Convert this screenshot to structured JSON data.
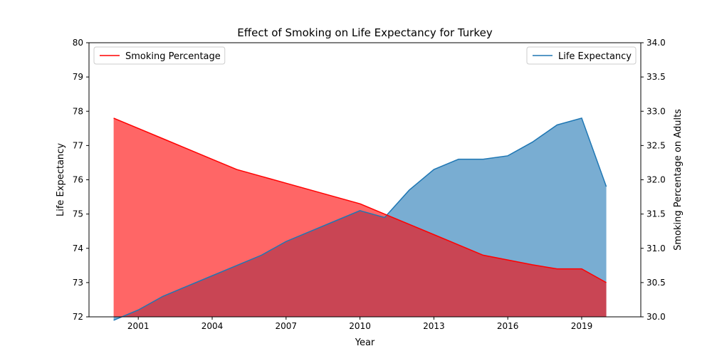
{
  "chart_data": {
    "type": "area",
    "title": "Effect of Smoking on Life Expectancy for Turkey",
    "xlabel": "Year",
    "ylabel_left": "Life Expectancy",
    "ylabel_right": "Smoking Percentage on Adults",
    "x": [
      2000,
      2001,
      2002,
      2003,
      2004,
      2005,
      2006,
      2007,
      2008,
      2009,
      2010,
      2011,
      2012,
      2013,
      2014,
      2015,
      2016,
      2017,
      2018,
      2019,
      2020
    ],
    "xticks": [
      2001,
      2004,
      2007,
      2010,
      2013,
      2016,
      2019
    ],
    "xlim": [
      1999,
      2021.4
    ],
    "left_axis": {
      "ylim": [
        72,
        80
      ],
      "ticks": [
        72,
        73,
        74,
        75,
        76,
        77,
        78,
        79,
        80
      ],
      "tick_labels": [
        "72",
        "73",
        "74",
        "75",
        "76",
        "77",
        "78",
        "79",
        "80"
      ]
    },
    "right_axis": {
      "ylim": [
        30.0,
        34.0
      ],
      "ticks": [
        30.0,
        30.5,
        31.0,
        31.5,
        32.0,
        32.5,
        33.0,
        33.5,
        34.0
      ],
      "tick_labels": [
        "30.0",
        "30.5",
        "31.0",
        "31.5",
        "32.0",
        "32.5",
        "33.0",
        "33.5",
        "34.0"
      ]
    },
    "series": [
      {
        "name": "Life Expectancy",
        "axis": "left",
        "color": "#1f77b4",
        "fill_alpha": 0.6,
        "values": [
          71.9,
          72.2,
          72.6,
          72.9,
          73.2,
          73.5,
          73.8,
          74.2,
          74.5,
          74.8,
          75.1,
          74.9,
          75.7,
          76.3,
          76.6,
          76.6,
          76.7,
          77.1,
          77.6,
          77.8,
          75.8
        ]
      },
      {
        "name": "Smoking Percentage",
        "axis": "right",
        "color": "#ff0000",
        "fill_alpha": 0.6,
        "values": [
          32.9,
          32.75,
          32.6,
          32.45,
          32.3,
          32.15,
          32.05,
          31.95,
          31.85,
          31.75,
          31.65,
          31.5,
          31.35,
          31.2,
          31.05,
          30.9,
          30.83,
          30.76,
          30.7,
          30.7,
          30.5
        ]
      }
    ],
    "legends": [
      {
        "placement": "upper-left",
        "label": "Smoking Percentage",
        "color": "#ff0000"
      },
      {
        "placement": "upper-right",
        "label": "Life Expectancy",
        "color": "#1f77b4"
      }
    ],
    "grid": false
  }
}
